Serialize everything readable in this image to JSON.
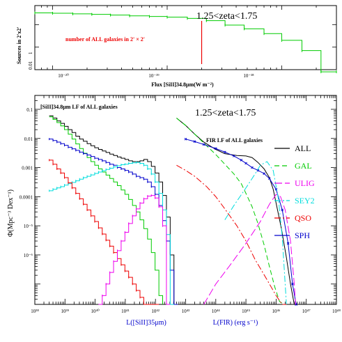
{
  "chart_data": [
    {
      "type": "line",
      "xscale": "log",
      "xlim": [
        7e-21,
        3e-18
      ],
      "ylim": [
        0.01,
        7.0
      ],
      "xlabel": "Flux [SiII]34.8μm(W m⁻²)",
      "ylabel": "Sources in 2'x2'",
      "x_tick_labels": [
        "10⁻²⁰",
        "10⁻¹⁹",
        "10⁻¹⁸"
      ],
      "y_tick_labels": [
        "0.01",
        "1"
      ],
      "annotation": "1.25<zeta<1.75",
      "threshold_label": "number of ALL galaxies in 2' × 2'",
      "threshold_flux": 2e-19,
      "colors": {
        "curve": "#00cc00",
        "threshold": "#ee0000"
      },
      "series": [
        {
          "x": [
            7e-21,
            1e-20,
            1.5e-20,
            2.2e-20,
            3.2e-20,
            4.7e-20,
            7e-20,
            1e-19,
            1.5e-19,
            2.2e-19,
            3.2e-19,
            4.7e-19,
            7e-19,
            1e-18,
            1.5e-18,
            2.2e-18,
            3e-18
          ],
          "values": [
            3.3,
            3.2,
            3.0,
            2.85,
            2.65,
            2.45,
            2.3,
            2.15,
            1.9,
            1.5,
            0.95,
            0.65,
            0.4,
            0.2,
            0.07,
            0.008,
            0.008
          ]
        }
      ]
    },
    {
      "type": "line",
      "xscale": "log",
      "yscale": "log",
      "xlim": [
        1e+38,
        1e+48
      ],
      "ylim": [
        2e-08,
        0.3
      ],
      "title": "[SiII]34.8μm LF of ALL galaxies",
      "annotation": "1.25<zeta<1.75",
      "fir_label": "FIR LF of ALL galaxies",
      "ylabel": "Φ(Mpc⁻³ Dex⁻¹)",
      "xlabels": [
        "L([SiII]35μm)",
        "L(FIR) (erg s⁻¹)"
      ],
      "x_tick_labels": [
        "10³⁸",
        "10³⁹",
        "10⁴⁰",
        "10⁴¹",
        "10⁴²",
        "10⁴³",
        "10⁴⁴",
        "10⁴⁵",
        "10⁴⁶",
        "10⁴⁷",
        "10⁴⁸"
      ],
      "y_tick_labels": [
        "0.1",
        "0.01",
        "0.001",
        "0.0001",
        "10⁻⁵",
        "10⁻⁶"
      ],
      "legend": [
        {
          "label": "ALL",
          "color": "#000000",
          "dash": ""
        },
        {
          "label": "GAL",
          "color": "#00cc00",
          "dash": "7,4"
        },
        {
          "label": "ULIG",
          "color": "#ee00ee",
          "dash": "11,4"
        },
        {
          "label": "SEY2",
          "color": "#00dddd",
          "dash": "9,3,2,3"
        },
        {
          "label": "QSO",
          "color": "#ee0000",
          "dash": "9,3,2,3"
        },
        {
          "label": "SPH",
          "color": "#0000cc",
          "dash": ""
        }
      ],
      "step_series": [
        {
          "name": "ALL",
          "color": "#000000",
          "x": [
            3e+38,
            4e+38,
            5.4e+38,
            7.2e+38,
            9.6e+38,
            1.28e+39,
            1.71e+39,
            2.28e+39,
            3.05e+39,
            4.06e+39,
            5.42e+39,
            7.24e+39,
            9.66e+39,
            1.29e+40,
            1.72e+40,
            2.29e+40,
            3.06e+40,
            4.08e+40,
            5.45e+40,
            7.27e+40,
            9.7e+40,
            1.29e+41,
            1.73e+41,
            2.3e+41,
            3.07e+41,
            4.1e+41,
            5.47e+41,
            7.3e+41,
            9.7e+41,
            1.3e+42,
            1.73e+42,
            2.31e+42,
            3.08e+42,
            4.1e+42,
            5.5e+42
          ],
          "values": [
            0.06,
            0.05,
            0.04,
            0.033,
            0.026,
            0.02,
            0.016,
            0.012,
            0.0095,
            0.008,
            0.0066,
            0.0056,
            0.0048,
            0.0042,
            0.0037,
            0.0033,
            0.0029,
            0.0026,
            0.0023,
            0.0021,
            0.0019,
            0.0017,
            0.0016,
            0.0016,
            0.0017,
            0.0019,
            0.0016,
            0.0011,
            0.00065,
            0.00032,
            0.00011,
            2e-05,
            1e-06,
            1e-08,
            1e-08
          ]
        },
        {
          "name": "GAL",
          "color": "#00cc00",
          "x": [
            3e+38,
            4e+38,
            5.4e+38,
            7.2e+38,
            9.6e+38,
            1.28e+39,
            1.71e+39,
            2.28e+39,
            3.05e+39,
            4.06e+39,
            5.42e+39,
            7.24e+39,
            9.66e+39,
            1.29e+40,
            1.72e+40,
            2.29e+40,
            3.06e+40,
            4.08e+40,
            5.45e+40,
            7.27e+40,
            9.7e+40,
            1.29e+41,
            1.73e+41,
            2.3e+41,
            3.07e+41,
            4.1e+41,
            5.47e+41,
            7.3e+41,
            9.7e+41,
            1.3e+42,
            1.73e+42
          ],
          "values": [
            0.055,
            0.045,
            0.035,
            0.027,
            0.02,
            0.014,
            0.0095,
            0.0065,
            0.0045,
            0.0031,
            0.0022,
            0.0016,
            0.0012,
            0.0009,
            0.0007,
            0.00055,
            0.00042,
            0.00032,
            0.00024,
            0.00017,
            0.00012,
            8e-05,
            5e-05,
            3e-05,
            1.6e-05,
            8e-06,
            3.5e-06,
            1.2e-06,
            3e-07,
            4e-08,
            1e-08
          ]
        },
        {
          "name": "SPH",
          "color": "#0000cc",
          "markers": true,
          "x": [
            3e+38,
            4e+38,
            5.4e+38,
            7.2e+38,
            9.6e+38,
            1.28e+39,
            1.71e+39,
            2.28e+39,
            3.05e+39,
            4.06e+39,
            5.42e+39,
            7.24e+39,
            9.66e+39,
            1.29e+40,
            1.72e+40,
            2.29e+40,
            3.06e+40,
            4.08e+40,
            5.45e+40,
            7.27e+40,
            9.7e+40,
            1.29e+41,
            1.73e+41,
            2.3e+41,
            3.07e+41,
            4.1e+41,
            5.47e+41,
            7.3e+41,
            9.7e+41,
            1.3e+42,
            1.73e+42,
            2.31e+42,
            3.08e+42,
            4.1e+42,
            5.5e+42
          ],
          "values": [
            0.0095,
            0.0085,
            0.0075,
            0.0066,
            0.0058,
            0.005,
            0.0044,
            0.0039,
            0.0034,
            0.003,
            0.0027,
            0.0024,
            0.0021,
            0.0019,
            0.0017,
            0.0015,
            0.0013,
            0.0012,
            0.001,
            0.0009,
            0.0008,
            0.0007,
            0.0006,
            0.0005,
            0.00045,
            0.0004,
            0.00032,
            0.00022,
            0.00012,
            5e-05,
            1.5e-05,
            3e-06,
            3e-07,
            1e-08,
            1e-08
          ]
        },
        {
          "name": "SEY2",
          "color": "#00dddd",
          "markers": true,
          "x": [
            3e+38,
            4e+38,
            5.4e+38,
            7.2e+38,
            9.6e+38,
            1.28e+39,
            1.71e+39,
            2.28e+39,
            3.05e+39,
            4.06e+39,
            5.42e+39,
            7.24e+39,
            9.66e+39,
            1.29e+40,
            1.72e+40,
            2.29e+40,
            3.06e+40,
            4.08e+40,
            5.45e+40,
            7.27e+40,
            9.7e+40,
            1.29e+41,
            1.73e+41,
            2.3e+41,
            3.07e+41,
            4.1e+41,
            5.47e+41,
            7.3e+41,
            9.7e+41,
            1.3e+42,
            1.73e+42,
            2.31e+42,
            3.08e+42,
            4.1e+42
          ],
          "values": [
            0.00016,
            0.00018,
            0.0002,
            0.00022,
            0.00025,
            0.00028,
            0.00031,
            0.00035,
            0.0004,
            0.00045,
            0.0005,
            0.00056,
            0.00063,
            0.0007,
            0.00078,
            0.00086,
            0.00095,
            0.00105,
            0.00115,
            0.00125,
            0.0013,
            0.0014,
            0.00145,
            0.0015,
            0.0014,
            0.0012,
            0.0009,
            0.0006,
            0.00032,
            0.00013,
            3.5e-05,
            5e-06,
            1e-08,
            1e-08
          ]
        },
        {
          "name": "QSO",
          "color": "#ee0000",
          "markers": true,
          "x": [
            3e+38,
            4e+38,
            5.4e+38,
            7.2e+38,
            9.6e+38,
            1.28e+39,
            1.71e+39,
            2.28e+39,
            3.05e+39,
            4.06e+39,
            5.42e+39,
            7.24e+39,
            9.66e+39,
            1.29e+40,
            1.72e+40,
            2.29e+40,
            3.06e+40,
            4.08e+40,
            5.45e+40,
            7.27e+40,
            9.7e+40,
            1.29e+41,
            1.73e+41,
            2.3e+41,
            3.07e+41,
            4.1e+41,
            5.47e+41,
            7.3e+41,
            9.7e+41,
            1.3e+42
          ],
          "values": [
            0.0018,
            0.0013,
            0.0009,
            0.00065,
            0.00045,
            0.0003,
            0.0002,
            0.00013,
            8.5e-05,
            5.5e-05,
            3.5e-05,
            2.2e-05,
            1.4e-05,
            8.5e-06,
            5.2e-06,
            3.2e-06,
            2e-06,
            1.2e-06,
            7.5e-07,
            4.6e-07,
            2.8e-07,
            1.7e-07,
            1e-07,
            6e-08,
            3.5e-08,
            2e-08,
            1e-08,
            1e-08,
            1e-08,
            1e-08
          ]
        },
        {
          "name": "ULIG",
          "color": "#ee00ee",
          "markers": true,
          "x": [
            1.29e+40,
            1.72e+40,
            2.29e+40,
            3.06e+40,
            4.08e+40,
            5.45e+40,
            7.27e+40,
            9.7e+40,
            1.29e+41,
            1.73e+41,
            2.3e+41,
            3.07e+41,
            4.1e+41,
            5.47e+41,
            7.3e+41,
            9.7e+41,
            1.3e+42,
            1.73e+42,
            2.31e+42,
            3.08e+42
          ],
          "values": [
            2e-08,
            4e-08,
            1e-07,
            2.5e-07,
            6e-07,
            1.4e-06,
            3e-06,
            6e-06,
            1.2e-05,
            2.2e-05,
            3.8e-05,
            6e-05,
            8.5e-05,
            0.000105,
            0.00011,
            9e-05,
            4.5e-05,
            1e-05,
            1e-08,
            1e-08
          ]
        }
      ],
      "curve_series": [
        {
          "name": "ALL",
          "color": "#000000",
          "dash": "",
          "x": [
            5e+42,
            1e+43,
            2e+43,
            4e+43,
            1e+44,
            2e+44,
            5e+44,
            1e+45,
            1.6e+45,
            2.5e+45,
            4e+45,
            6e+45,
            8e+45,
            1e+46,
            1.5e+46,
            2.2e+46,
            3e+46,
            4e+46,
            4.6e+46
          ],
          "values": [
            0.05,
            0.028,
            0.014,
            0.0075,
            0.0042,
            0.003,
            0.0026,
            0.0025,
            0.0022,
            0.0015,
            0.0009,
            0.00045,
            0.00018,
            6e-05,
            8e-06,
            8e-07,
            1e-07,
            2e-08,
            2e-08
          ]
        },
        {
          "name": "GAL",
          "color": "#00cc00",
          "dash": "7,4",
          "x": [
            5e+42,
            1e+43,
            2e+43,
            4e+43,
            1e+44,
            2e+44,
            4e+44,
            7e+44,
            1e+45,
            1.6e+45,
            2.5e+45,
            4e+45,
            6e+45,
            9e+45,
            1.3e+46,
            1.8e+46
          ],
          "values": [
            0.05,
            0.028,
            0.014,
            0.007,
            0.0028,
            0.0013,
            0.0006,
            0.00028,
            0.00013,
            4.5e-05,
            1.2e-05,
            2.2e-06,
            4e-07,
            8e-08,
            2.5e-08,
            2e-08
          ]
        },
        {
          "name": "SPH",
          "color": "#0000cc",
          "dash": "",
          "markers": true,
          "x": [
            1e+43,
            2e+43,
            4e+43,
            1e+44,
            2e+44,
            4e+44,
            7e+44,
            1e+45,
            1.6e+45,
            2.5e+45,
            4e+45,
            6e+45,
            1e+46,
            1.6e+46,
            2.5e+46,
            3.5e+46,
            4.6e+46
          ],
          "values": [
            0.0095,
            0.0078,
            0.0062,
            0.0045,
            0.0034,
            0.0025,
            0.0018,
            0.0014,
            0.001,
            0.0008,
            0.00062,
            0.00042,
            0.00018,
            3.5e-05,
            2.5e-06,
            1e-07,
            2e-08
          ]
        },
        {
          "name": "SEY2",
          "color": "#00dddd",
          "dash": "9,3,2,3",
          "x": [
            2e+44,
            4e+44,
            1e+45,
            2e+45,
            3e+45,
            5e+45,
            8e+45,
            1.2e+46,
            1.6e+46,
            2.2e+46
          ],
          "values": [
            1.6e-05,
            5e-05,
            0.0002,
            0.0006,
            0.0012,
            0.0016,
            0.0008,
            8e-05,
            4e-06,
            2e-08
          ]
        },
        {
          "name": "QSO",
          "color": "#ee0000",
          "dash": "9,3,2,3",
          "x": [
            5e+42,
            1e+43,
            2e+43,
            5e+43,
            1e+44,
            2e+44,
            5e+44,
            1e+45,
            2e+45,
            5e+45,
            1e+46,
            1.6e+46,
            2.2e+46
          ],
          "values": [
            0.0012,
            0.0008,
            0.0005,
            0.00022,
            0.0001,
            3.8e-05,
            1e-05,
            3e-06,
            7e-07,
            1.4e-07,
            4e-08,
            2e-08,
            2e-08
          ]
        },
        {
          "name": "ULIG",
          "color": "#ee00ee",
          "dash": "11,4",
          "x": [
            4e+43,
            1e+44,
            3e+44,
            1e+45,
            3e+45,
            6e+45,
            1e+46,
            1.4e+46,
            2e+46,
            3e+46,
            4e+46,
            4.4e+46
          ],
          "values": [
            2e-08,
            1e-07,
            4.5e-07,
            2.5e-06,
            1.4e-05,
            5.5e-05,
            0.00012,
            0.0001,
            3.5e-05,
            3e-06,
            1e-07,
            2e-08
          ]
        }
      ]
    }
  ]
}
